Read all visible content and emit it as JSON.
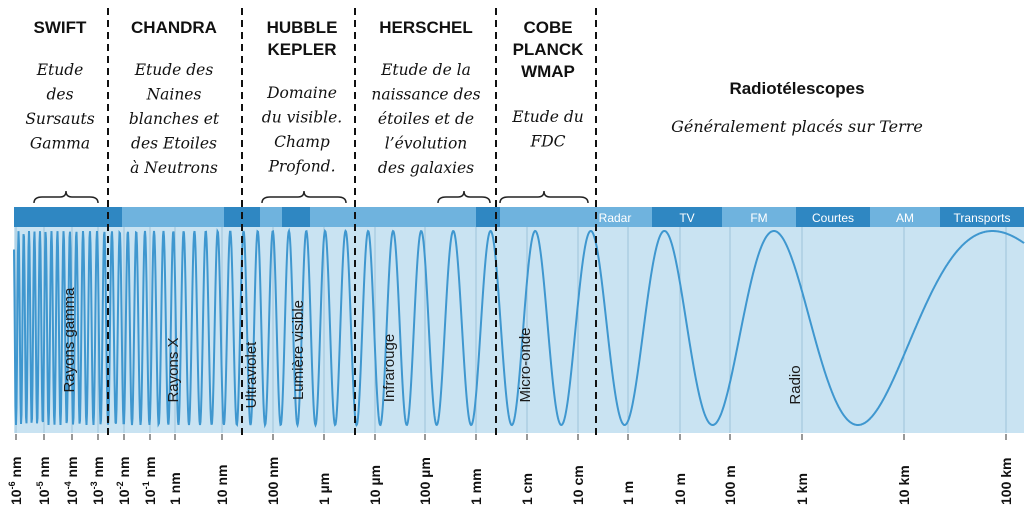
{
  "missions": [
    {
      "name_lines": [
        "SWIFT"
      ],
      "desc_lines": [
        "Etude",
        "des",
        "Sursauts",
        "Gamma"
      ]
    },
    {
      "name_lines": [
        "CHANDRA"
      ],
      "desc_lines": [
        "Etude des",
        "Naines",
        "blanches et",
        "des Etoiles",
        "à Neutrons"
      ]
    },
    {
      "name_lines": [
        "HUBBLE",
        "KEPLER"
      ],
      "desc_lines": [
        "Domaine",
        "du visible.",
        "Champ",
        "Profond."
      ]
    },
    {
      "name_lines": [
        "HERSCHEL"
      ],
      "desc_lines": [
        "Etude de la",
        "naissance des",
        "étoiles et de",
        "l’évolution",
        "des galaxies"
      ]
    },
    {
      "name_lines": [
        "COBE",
        "PLANCK",
        "WMAP"
      ],
      "desc_lines": [
        "Etude du",
        "FDC"
      ]
    }
  ],
  "radio_section": {
    "title": "Radiotélescopes",
    "desc": "Généralement placés sur Terre"
  },
  "bands": [
    "Rayons gamma",
    "Rayons X",
    "Ultraviolet",
    "Lumière visible",
    "Infrarouge",
    "Micro-onde",
    "Radio"
  ],
  "radio_subbands": [
    "Radar",
    "TV",
    "FM",
    "Courtes",
    "AM",
    "Transports"
  ],
  "ticks": [
    {
      "base": "10",
      "sup": "-6",
      "unit": "nm"
    },
    {
      "base": "10",
      "sup": "-5",
      "unit": "nm"
    },
    {
      "base": "10",
      "sup": "-4",
      "unit": "nm"
    },
    {
      "base": "10",
      "sup": "-3",
      "unit": "nm"
    },
    {
      "base": "10",
      "sup": "-2",
      "unit": "nm"
    },
    {
      "base": "10",
      "sup": "-1",
      "unit": "nm"
    },
    {
      "base": "1",
      "sup": "",
      "unit": "nm"
    },
    {
      "base": "10",
      "sup": "",
      "unit": "nm"
    },
    {
      "base": "100",
      "sup": "",
      "unit": "nm"
    },
    {
      "base": "1",
      "sup": "",
      "unit": "µm"
    },
    {
      "base": "10",
      "sup": "",
      "unit": "µm"
    },
    {
      "base": "100",
      "sup": "",
      "unit": "µm"
    },
    {
      "base": "1",
      "sup": "",
      "unit": "mm"
    },
    {
      "base": "1",
      "sup": "",
      "unit": "cm"
    },
    {
      "base": "10",
      "sup": "",
      "unit": "cm"
    },
    {
      "base": "1",
      "sup": "",
      "unit": "m"
    },
    {
      "base": "10",
      "sup": "",
      "unit": "m"
    },
    {
      "base": "100",
      "sup": "",
      "unit": "m"
    },
    {
      "base": "1",
      "sup": "",
      "unit": "km"
    },
    {
      "base": "10",
      "sup": "",
      "unit": "km"
    },
    {
      "base": "100",
      "sup": "",
      "unit": "km"
    }
  ],
  "colors": {
    "panel": "#c9e3f2",
    "band_dark": "#2f87c2",
    "band_light": "#6fb3de",
    "wave": "#3f97cf",
    "grid": "#9dc3db",
    "divider": "#111111",
    "bracket": "#222222"
  }
}
